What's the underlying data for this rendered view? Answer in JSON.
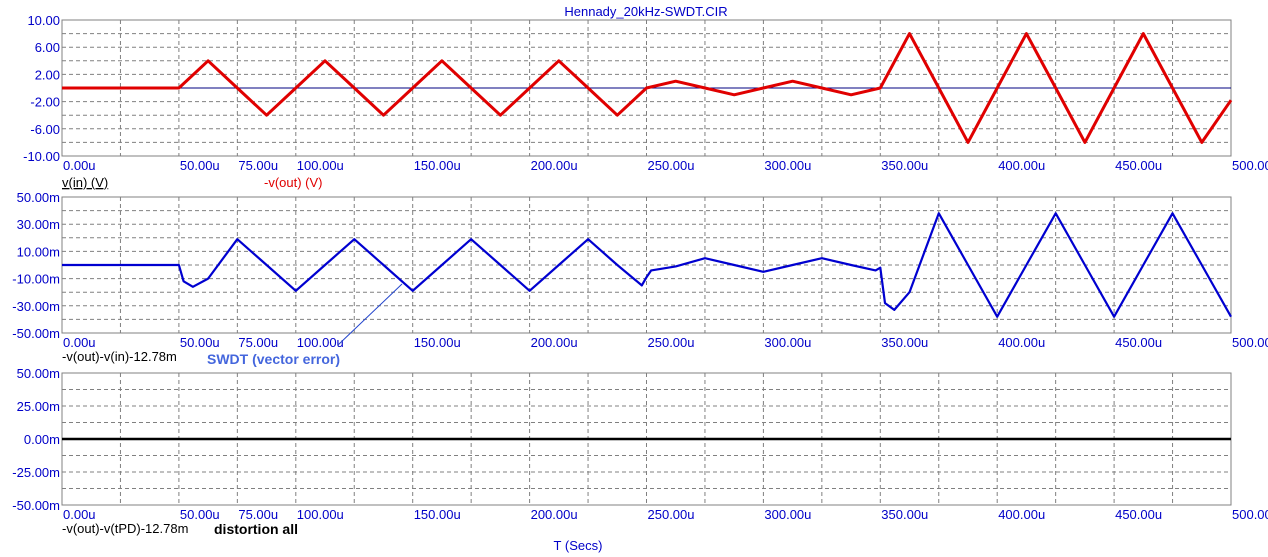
{
  "title": "Hennady_20kHz-SWDT.CIR",
  "xlabel": "T (Secs)",
  "colors": {
    "tick_label": "#0000c8",
    "grid": "#808080",
    "red_trace": "#e00000",
    "blue_trace": "#0000d0",
    "black_trace": "#000000",
    "annotation": "#4466dd"
  },
  "chart_data": [
    {
      "type": "line",
      "xlim": [
        0,
        500
      ],
      "ylim": [
        -10,
        10
      ],
      "x_ticks": [
        "0.00u",
        "50.00u",
        "75.00u",
        "100.00u",
        "150.00u",
        "200.00u",
        "250.00u",
        "300.00u",
        "350.00u",
        "400.00u",
        "450.00u",
        "500.00u"
      ],
      "x_tick_values": [
        0,
        50,
        75,
        100,
        150,
        200,
        250,
        300,
        350,
        400,
        450,
        500
      ],
      "y_ticks": [
        "10.00",
        "6.00",
        "2.00",
        "-2.00",
        "-6.00",
        "-10.00"
      ],
      "y_tick_values": [
        10,
        6,
        2,
        -2,
        -6,
        -10
      ],
      "grid": true,
      "legend": [
        {
          "name": "v(in) (V)",
          "color": "#000000"
        },
        {
          "name": "-v(out) (V)",
          "color": "#e00000"
        }
      ],
      "series": [
        {
          "name": "v(in) (V)",
          "x": [
            0,
            500
          ],
          "y": [
            0,
            0
          ]
        },
        {
          "name": "-v(out) (V)",
          "x": [
            0,
            50,
            62.5,
            75,
            87.5,
            100,
            112.5,
            125,
            137.5,
            150,
            162.5,
            175,
            187.5,
            200,
            212.5,
            225,
            237.5,
            250,
            262.5,
            275,
            287.5,
            300,
            312.5,
            325,
            337.5,
            350,
            362.5,
            375,
            387.5,
            400,
            412.5,
            425,
            437.5,
            450,
            462.5,
            475,
            487.5,
            500
          ],
          "y": [
            0,
            0,
            4,
            0,
            -4,
            0,
            4,
            0,
            -4,
            0,
            4,
            0,
            -4,
            0,
            4,
            0,
            -4,
            0,
            1,
            0,
            -1,
            0,
            1,
            0,
            -1,
            0,
            8,
            0,
            -8,
            0,
            8,
            0,
            -8,
            0,
            8,
            0,
            -8,
            -1.8
          ]
        }
      ]
    },
    {
      "type": "line",
      "xlim": [
        0,
        500
      ],
      "ylim": [
        -50,
        50
      ],
      "x_ticks": [
        "0.00u",
        "50.00u",
        "75.00u",
        "100.00u",
        "150.00u",
        "200.00u",
        "250.00u",
        "300.00u",
        "350.00u",
        "400.00u",
        "450.00u",
        "500.00u"
      ],
      "x_tick_values": [
        0,
        50,
        75,
        100,
        150,
        200,
        250,
        300,
        350,
        400,
        450,
        500
      ],
      "y_ticks": [
        "50.00m",
        "30.00m",
        "10.00m",
        "-10.00m",
        "-30.00m",
        "-50.00m"
      ],
      "y_tick_values": [
        50,
        30,
        10,
        -10,
        -30,
        -50
      ],
      "grid": true,
      "legend": [
        {
          "name": "-v(out)-v(in)-12.78m",
          "color": "#000000"
        }
      ],
      "annotation": {
        "text": "SWDT (vector error)",
        "arrow_to": [
          145,
          -7
        ]
      },
      "series": [
        {
          "name": "-v(out)-v(in)-12.78m",
          "x": [
            0,
            50,
            52,
            56,
            62.5,
            75,
            87.5,
            100,
            112.5,
            125,
            137.5,
            150,
            162.5,
            175,
            187.5,
            200,
            212.5,
            225,
            237.5,
            248,
            250,
            252,
            262.5,
            275,
            287.5,
            300,
            312.5,
            325,
            337.5,
            348,
            350,
            352,
            356,
            362.5,
            375,
            387.5,
            400,
            412.5,
            425,
            437.5,
            450,
            462.5,
            475,
            487.5,
            500
          ],
          "y": [
            0,
            0,
            -12,
            -16,
            -10,
            19,
            0,
            -19,
            0,
            19,
            0,
            -19,
            0,
            19,
            0,
            -19,
            0,
            19,
            0,
            -15,
            -9,
            -4,
            -1,
            5,
            0,
            -5,
            0,
            5,
            0,
            -4,
            -2,
            -28,
            -33,
            -20,
            38,
            0,
            -38,
            0,
            38,
            0,
            -38,
            0,
            38,
            0,
            -38
          ]
        }
      ]
    },
    {
      "type": "line",
      "xlim": [
        0,
        500
      ],
      "ylim": [
        -50,
        50
      ],
      "x_ticks": [
        "0.00u",
        "50.00u",
        "75.00u",
        "100.00u",
        "150.00u",
        "200.00u",
        "250.00u",
        "300.00u",
        "350.00u",
        "400.00u",
        "450.00u",
        "500.00u"
      ],
      "x_tick_values": [
        0,
        50,
        75,
        100,
        150,
        200,
        250,
        300,
        350,
        400,
        450,
        500
      ],
      "y_ticks": [
        "50.00m",
        "25.00m",
        "0.00m",
        "-25.00m",
        "-50.00m"
      ],
      "y_tick_values": [
        50,
        25,
        0,
        -25,
        -50
      ],
      "grid": true,
      "legend": [
        {
          "name": "-v(out)-v(tPD)-12.78m",
          "color": "#000000"
        }
      ],
      "annotation": {
        "text": "distortion all"
      },
      "series": [
        {
          "name": "-v(out)-v(tPD)-12.78m",
          "x": [
            0,
            500
          ],
          "y": [
            0,
            0
          ]
        }
      ]
    }
  ]
}
